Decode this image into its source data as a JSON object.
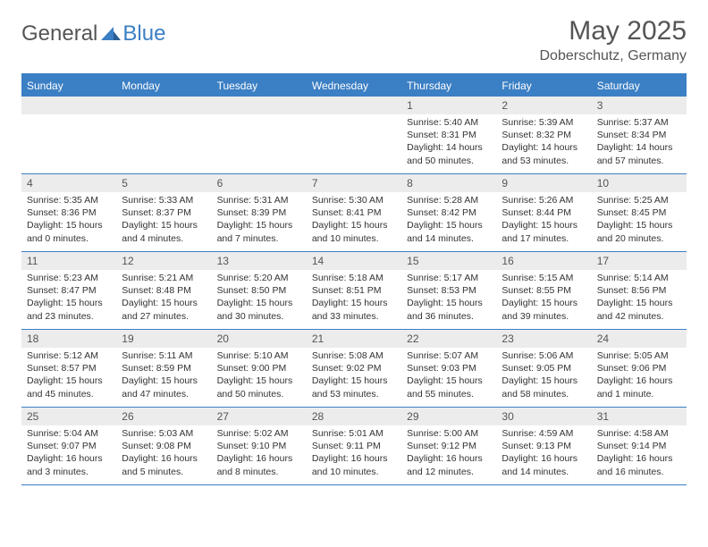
{
  "logo": {
    "general": "General",
    "blue": "Blue"
  },
  "title": "May 2025",
  "location": "Doberschutz, Germany",
  "weekdays": [
    "Sunday",
    "Monday",
    "Tuesday",
    "Wednesday",
    "Thursday",
    "Friday",
    "Saturday"
  ],
  "colors": {
    "accent": "#3b7fc4",
    "headerText": "#ffffff",
    "dayBg": "#ececec",
    "text": "#333333",
    "titleText": "#555555"
  },
  "weeks": [
    [
      {
        "num": "",
        "sun": "",
        "set": "",
        "day": ""
      },
      {
        "num": "",
        "sun": "",
        "set": "",
        "day": ""
      },
      {
        "num": "",
        "sun": "",
        "set": "",
        "day": ""
      },
      {
        "num": "",
        "sun": "",
        "set": "",
        "day": ""
      },
      {
        "num": "1",
        "sun": "Sunrise: 5:40 AM",
        "set": "Sunset: 8:31 PM",
        "day": "Daylight: 14 hours and 50 minutes."
      },
      {
        "num": "2",
        "sun": "Sunrise: 5:39 AM",
        "set": "Sunset: 8:32 PM",
        "day": "Daylight: 14 hours and 53 minutes."
      },
      {
        "num": "3",
        "sun": "Sunrise: 5:37 AM",
        "set": "Sunset: 8:34 PM",
        "day": "Daylight: 14 hours and 57 minutes."
      }
    ],
    [
      {
        "num": "4",
        "sun": "Sunrise: 5:35 AM",
        "set": "Sunset: 8:36 PM",
        "day": "Daylight: 15 hours and 0 minutes."
      },
      {
        "num": "5",
        "sun": "Sunrise: 5:33 AM",
        "set": "Sunset: 8:37 PM",
        "day": "Daylight: 15 hours and 4 minutes."
      },
      {
        "num": "6",
        "sun": "Sunrise: 5:31 AM",
        "set": "Sunset: 8:39 PM",
        "day": "Daylight: 15 hours and 7 minutes."
      },
      {
        "num": "7",
        "sun": "Sunrise: 5:30 AM",
        "set": "Sunset: 8:41 PM",
        "day": "Daylight: 15 hours and 10 minutes."
      },
      {
        "num": "8",
        "sun": "Sunrise: 5:28 AM",
        "set": "Sunset: 8:42 PM",
        "day": "Daylight: 15 hours and 14 minutes."
      },
      {
        "num": "9",
        "sun": "Sunrise: 5:26 AM",
        "set": "Sunset: 8:44 PM",
        "day": "Daylight: 15 hours and 17 minutes."
      },
      {
        "num": "10",
        "sun": "Sunrise: 5:25 AM",
        "set": "Sunset: 8:45 PM",
        "day": "Daylight: 15 hours and 20 minutes."
      }
    ],
    [
      {
        "num": "11",
        "sun": "Sunrise: 5:23 AM",
        "set": "Sunset: 8:47 PM",
        "day": "Daylight: 15 hours and 23 minutes."
      },
      {
        "num": "12",
        "sun": "Sunrise: 5:21 AM",
        "set": "Sunset: 8:48 PM",
        "day": "Daylight: 15 hours and 27 minutes."
      },
      {
        "num": "13",
        "sun": "Sunrise: 5:20 AM",
        "set": "Sunset: 8:50 PM",
        "day": "Daylight: 15 hours and 30 minutes."
      },
      {
        "num": "14",
        "sun": "Sunrise: 5:18 AM",
        "set": "Sunset: 8:51 PM",
        "day": "Daylight: 15 hours and 33 minutes."
      },
      {
        "num": "15",
        "sun": "Sunrise: 5:17 AM",
        "set": "Sunset: 8:53 PM",
        "day": "Daylight: 15 hours and 36 minutes."
      },
      {
        "num": "16",
        "sun": "Sunrise: 5:15 AM",
        "set": "Sunset: 8:55 PM",
        "day": "Daylight: 15 hours and 39 minutes."
      },
      {
        "num": "17",
        "sun": "Sunrise: 5:14 AM",
        "set": "Sunset: 8:56 PM",
        "day": "Daylight: 15 hours and 42 minutes."
      }
    ],
    [
      {
        "num": "18",
        "sun": "Sunrise: 5:12 AM",
        "set": "Sunset: 8:57 PM",
        "day": "Daylight: 15 hours and 45 minutes."
      },
      {
        "num": "19",
        "sun": "Sunrise: 5:11 AM",
        "set": "Sunset: 8:59 PM",
        "day": "Daylight: 15 hours and 47 minutes."
      },
      {
        "num": "20",
        "sun": "Sunrise: 5:10 AM",
        "set": "Sunset: 9:00 PM",
        "day": "Daylight: 15 hours and 50 minutes."
      },
      {
        "num": "21",
        "sun": "Sunrise: 5:08 AM",
        "set": "Sunset: 9:02 PM",
        "day": "Daylight: 15 hours and 53 minutes."
      },
      {
        "num": "22",
        "sun": "Sunrise: 5:07 AM",
        "set": "Sunset: 9:03 PM",
        "day": "Daylight: 15 hours and 55 minutes."
      },
      {
        "num": "23",
        "sun": "Sunrise: 5:06 AM",
        "set": "Sunset: 9:05 PM",
        "day": "Daylight: 15 hours and 58 minutes."
      },
      {
        "num": "24",
        "sun": "Sunrise: 5:05 AM",
        "set": "Sunset: 9:06 PM",
        "day": "Daylight: 16 hours and 1 minute."
      }
    ],
    [
      {
        "num": "25",
        "sun": "Sunrise: 5:04 AM",
        "set": "Sunset: 9:07 PM",
        "day": "Daylight: 16 hours and 3 minutes."
      },
      {
        "num": "26",
        "sun": "Sunrise: 5:03 AM",
        "set": "Sunset: 9:08 PM",
        "day": "Daylight: 16 hours and 5 minutes."
      },
      {
        "num": "27",
        "sun": "Sunrise: 5:02 AM",
        "set": "Sunset: 9:10 PM",
        "day": "Daylight: 16 hours and 8 minutes."
      },
      {
        "num": "28",
        "sun": "Sunrise: 5:01 AM",
        "set": "Sunset: 9:11 PM",
        "day": "Daylight: 16 hours and 10 minutes."
      },
      {
        "num": "29",
        "sun": "Sunrise: 5:00 AM",
        "set": "Sunset: 9:12 PM",
        "day": "Daylight: 16 hours and 12 minutes."
      },
      {
        "num": "30",
        "sun": "Sunrise: 4:59 AM",
        "set": "Sunset: 9:13 PM",
        "day": "Daylight: 16 hours and 14 minutes."
      },
      {
        "num": "31",
        "sun": "Sunrise: 4:58 AM",
        "set": "Sunset: 9:14 PM",
        "day": "Daylight: 16 hours and 16 minutes."
      }
    ]
  ]
}
